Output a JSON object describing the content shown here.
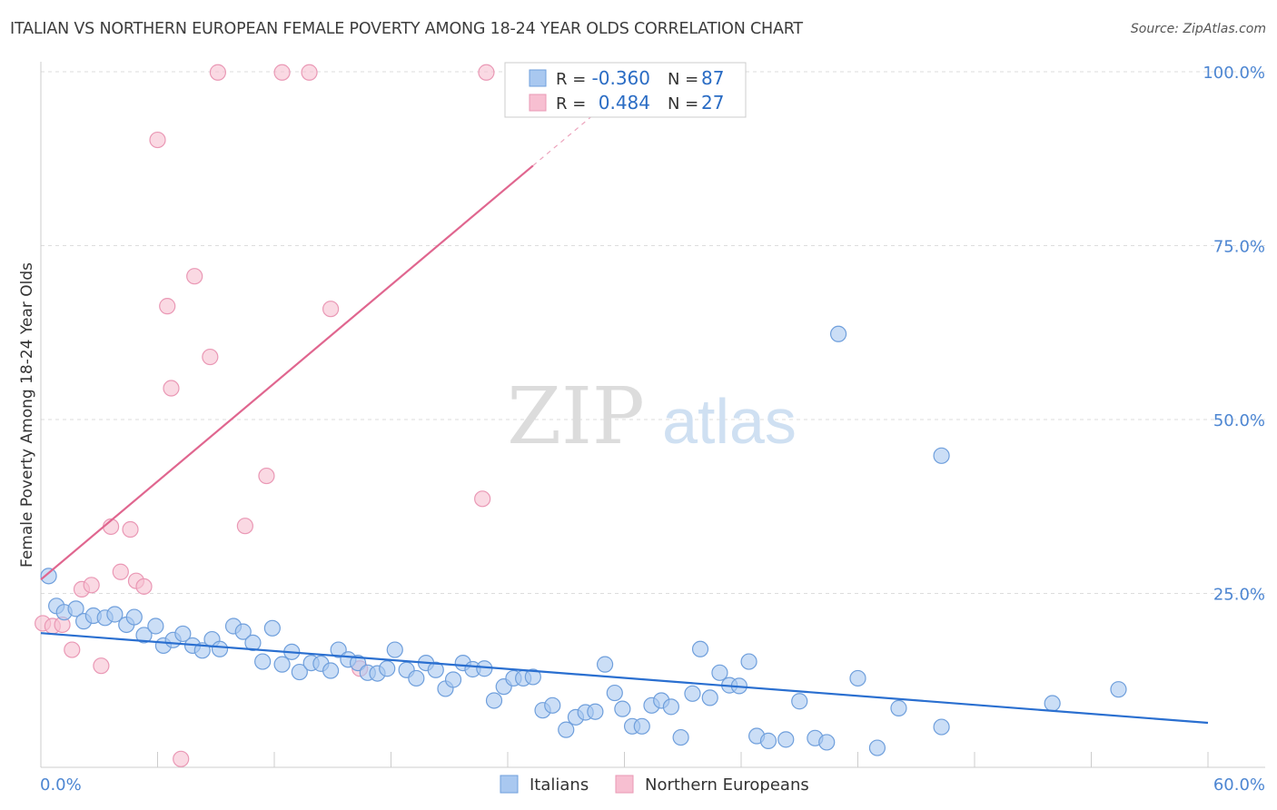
{
  "chart_title": "ITALIAN VS NORTHERN EUROPEAN FEMALE POVERTY AMONG 18-24 YEAR OLDS CORRELATION CHART",
  "source": "Source: ZipAtlas.com",
  "watermark": {
    "zip": "ZIP",
    "atlas": "atlas"
  },
  "colors": {
    "italians_fill": "#a9c8f0",
    "italians_stroke": "#6f9fdc",
    "italians_line": "#2a6fd0",
    "northern_fill": "#f7bfd1",
    "northern_stroke": "#ea98b5",
    "northern_line": "#e0668f",
    "tick_text": "#4d86d2",
    "grid": "#dddddd"
  },
  "legend": {
    "r_label": "R =",
    "n_label": "N =",
    "italians_r": "-0.360",
    "italians_n": "87",
    "northern_r": "0.484",
    "northern_n": "27"
  },
  "chart_data": {
    "type": "scatter",
    "title": "ITALIAN VS NORTHERN EUROPEAN FEMALE POVERTY AMONG 18-24 YEAR OLDS CORRELATION CHART",
    "xlabel": "",
    "ylabel": "Female Poverty Among 18-24 Year Olds",
    "xlim": [
      0,
      60
    ],
    "ylim": [
      0,
      105
    ],
    "x_tick_labels": [
      "0.0%",
      "60.0%"
    ],
    "y_ticks": [
      25,
      50,
      75,
      100
    ],
    "y_tick_labels": [
      "25.0%",
      "50.0%",
      "75.0%",
      "100.0%"
    ],
    "grid": true,
    "legend_position": "top-center",
    "series": [
      {
        "name": "Italians",
        "trend": {
          "x": [
            0,
            60
          ],
          "y": [
            19.3,
            6.4
          ]
        },
        "points": [
          [
            0.4,
            27.5
          ],
          [
            0.8,
            23.2
          ],
          [
            1.2,
            22.3
          ],
          [
            1.8,
            22.8
          ],
          [
            2.2,
            21.0
          ],
          [
            2.7,
            21.8
          ],
          [
            3.3,
            21.5
          ],
          [
            3.8,
            22.0
          ],
          [
            4.4,
            20.5
          ],
          [
            4.8,
            21.6
          ],
          [
            5.3,
            19.0
          ],
          [
            5.9,
            20.3
          ],
          [
            6.3,
            17.5
          ],
          [
            6.8,
            18.3
          ],
          [
            7.3,
            19.2
          ],
          [
            7.8,
            17.5
          ],
          [
            8.3,
            16.8
          ],
          [
            8.8,
            18.4
          ],
          [
            9.2,
            17.0
          ],
          [
            9.9,
            20.3
          ],
          [
            10.4,
            19.5
          ],
          [
            10.9,
            17.9
          ],
          [
            11.4,
            15.2
          ],
          [
            11.9,
            20.0
          ],
          [
            12.4,
            14.8
          ],
          [
            12.9,
            16.6
          ],
          [
            13.3,
            13.7
          ],
          [
            13.9,
            15.0
          ],
          [
            14.4,
            14.9
          ],
          [
            14.9,
            13.9
          ],
          [
            15.3,
            16.9
          ],
          [
            15.8,
            15.5
          ],
          [
            16.3,
            15.0
          ],
          [
            16.8,
            13.6
          ],
          [
            17.3,
            13.5
          ],
          [
            17.8,
            14.2
          ],
          [
            18.2,
            16.9
          ],
          [
            18.8,
            14.0
          ],
          [
            19.3,
            12.8
          ],
          [
            19.8,
            15.0
          ],
          [
            20.3,
            14.0
          ],
          [
            20.8,
            11.3
          ],
          [
            21.2,
            12.6
          ],
          [
            21.7,
            15.0
          ],
          [
            22.2,
            14.1
          ],
          [
            22.8,
            14.2
          ],
          [
            23.3,
            9.6
          ],
          [
            23.8,
            11.6
          ],
          [
            24.3,
            12.8
          ],
          [
            24.8,
            12.8
          ],
          [
            25.3,
            13.0
          ],
          [
            25.8,
            8.2
          ],
          [
            26.3,
            8.9
          ],
          [
            27.0,
            5.4
          ],
          [
            27.5,
            7.2
          ],
          [
            28.0,
            7.9
          ],
          [
            28.5,
            8.0
          ],
          [
            29.0,
            14.8
          ],
          [
            29.5,
            10.7
          ],
          [
            29.9,
            8.4
          ],
          [
            30.4,
            5.9
          ],
          [
            30.9,
            5.9
          ],
          [
            31.4,
            8.9
          ],
          [
            31.9,
            9.6
          ],
          [
            32.4,
            8.7
          ],
          [
            32.9,
            4.3
          ],
          [
            33.5,
            10.6
          ],
          [
            33.9,
            17.0
          ],
          [
            34.4,
            10.0
          ],
          [
            34.9,
            13.6
          ],
          [
            35.4,
            11.8
          ],
          [
            35.9,
            11.7
          ],
          [
            36.4,
            15.2
          ],
          [
            36.8,
            4.5
          ],
          [
            37.4,
            3.8
          ],
          [
            38.3,
            4.0
          ],
          [
            39.0,
            9.5
          ],
          [
            39.8,
            4.2
          ],
          [
            40.4,
            3.6
          ],
          [
            41.0,
            62.3
          ],
          [
            42.0,
            12.8
          ],
          [
            43.0,
            2.8
          ],
          [
            44.1,
            8.5
          ],
          [
            46.3,
            44.8
          ],
          [
            46.3,
            5.8
          ],
          [
            52.0,
            9.2
          ],
          [
            55.4,
            11.2
          ]
        ]
      },
      {
        "name": "Northern Europeans",
        "trend": {
          "x": [
            0,
            25.3
          ],
          "y": [
            27.0,
            86.5
          ]
        },
        "points": [
          [
            0.1,
            20.7
          ],
          [
            0.6,
            20.3
          ],
          [
            1.1,
            20.5
          ],
          [
            1.6,
            16.9
          ],
          [
            2.1,
            25.6
          ],
          [
            2.6,
            26.2
          ],
          [
            3.1,
            14.6
          ],
          [
            3.6,
            34.6
          ],
          [
            4.1,
            28.1
          ],
          [
            4.6,
            34.2
          ],
          [
            4.9,
            26.8
          ],
          [
            5.3,
            26.0
          ],
          [
            6.0,
            90.2
          ],
          [
            6.5,
            66.3
          ],
          [
            6.7,
            54.5
          ],
          [
            7.2,
            1.2
          ],
          [
            7.9,
            70.6
          ],
          [
            8.7,
            59.0
          ],
          [
            9.1,
            99.9
          ],
          [
            10.5,
            34.7
          ],
          [
            11.6,
            41.9
          ],
          [
            12.4,
            99.9
          ],
          [
            13.8,
            99.9
          ],
          [
            14.9,
            65.9
          ],
          [
            16.4,
            14.2
          ],
          [
            22.7,
            38.6
          ],
          [
            22.9,
            99.9
          ]
        ]
      }
    ]
  },
  "bottom_legend": {
    "italians": "Italians",
    "northern": "Northern Europeans"
  }
}
